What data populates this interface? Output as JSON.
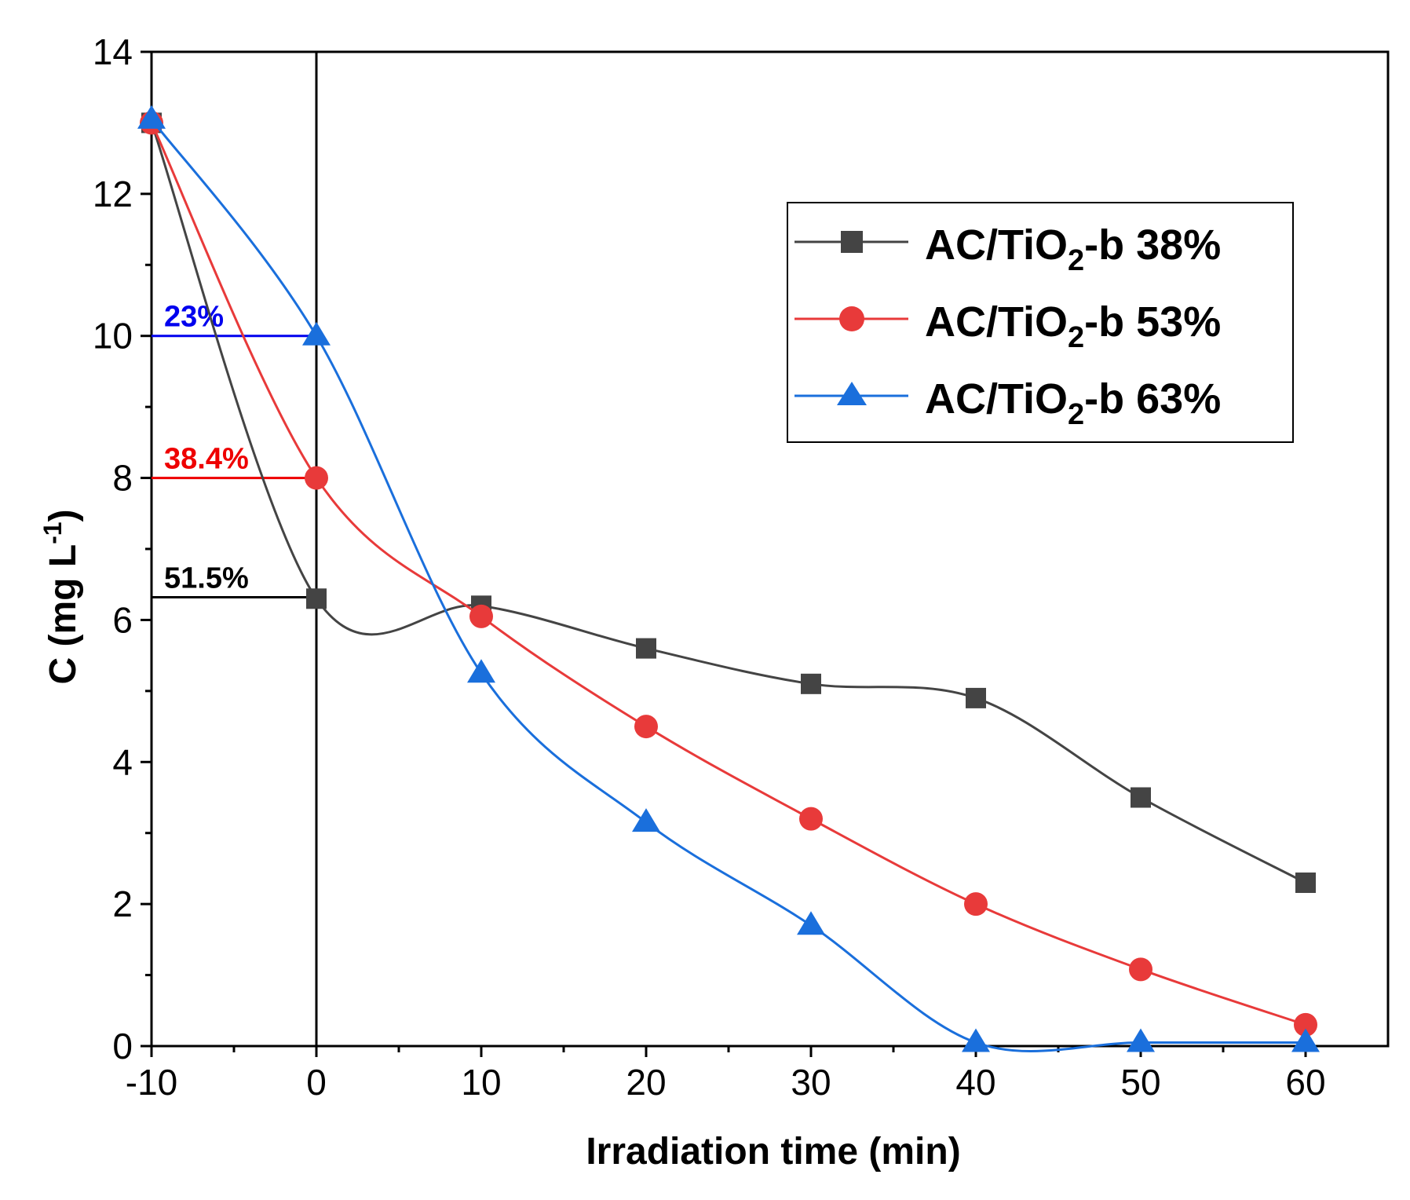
{
  "chart_data": {
    "type": "line",
    "title": "",
    "xlabel": "Irradiation time (min)",
    "ylabel_main": "C (mg L",
    "ylabel_sup": "-1",
    "ylabel_close": ")",
    "xlim": [
      -10,
      65
    ],
    "ylim": [
      0,
      14
    ],
    "xticks": [
      -10,
      0,
      10,
      20,
      30,
      40,
      50,
      60
    ],
    "yticks": [
      0,
      2,
      4,
      6,
      8,
      10,
      12,
      14
    ],
    "xtick_labels": [
      "-10",
      "0",
      "10",
      "20",
      "30",
      "40",
      "50",
      "60"
    ],
    "ytick_labels": [
      "0",
      "2",
      "4",
      "6",
      "8",
      "10",
      "12",
      "14"
    ],
    "legend_position": "top-right",
    "series": [
      {
        "name": "AC/TiO2-b 38%",
        "label_main": "AC/TiO",
        "label_sub": "2",
        "label_rest": "-b 38%",
        "color": "#444444",
        "marker": "square",
        "x": [
          -10,
          0,
          10,
          20,
          30,
          40,
          50,
          60
        ],
        "y": [
          13.0,
          6.3,
          6.2,
          5.6,
          5.1,
          4.9,
          3.5,
          2.3
        ]
      },
      {
        "name": "AC/TiO2-b 53%",
        "label_main": "AC/TiO",
        "label_sub": "2",
        "label_rest": "-b 53%",
        "color": "#e83a3a",
        "marker": "circle",
        "x": [
          -10,
          0,
          10,
          20,
          30,
          40,
          50,
          60
        ],
        "y": [
          13.0,
          8.0,
          6.05,
          4.5,
          3.2,
          2.0,
          1.08,
          0.3
        ]
      },
      {
        "name": "AC/TiO2-b 63%",
        "label_main": "AC/TiO",
        "label_sub": "2",
        "label_rest": "-b 63%",
        "color": "#1a6fdc",
        "marker": "triangle",
        "x": [
          -10,
          0,
          10,
          20,
          30,
          40,
          50,
          60
        ],
        "y": [
          13.05,
          10.0,
          5.25,
          3.15,
          1.7,
          0.05,
          0.05,
          0.05
        ]
      }
    ],
    "annotations": [
      {
        "text": "23%",
        "y": 10.0,
        "color": "#0000ee"
      },
      {
        "text": "38.4%",
        "y": 8.0,
        "color": "#ee0000"
      },
      {
        "text": "51.5%",
        "y": 6.32,
        "color": "#000000"
      }
    ],
    "vertical_line_x": 0
  }
}
